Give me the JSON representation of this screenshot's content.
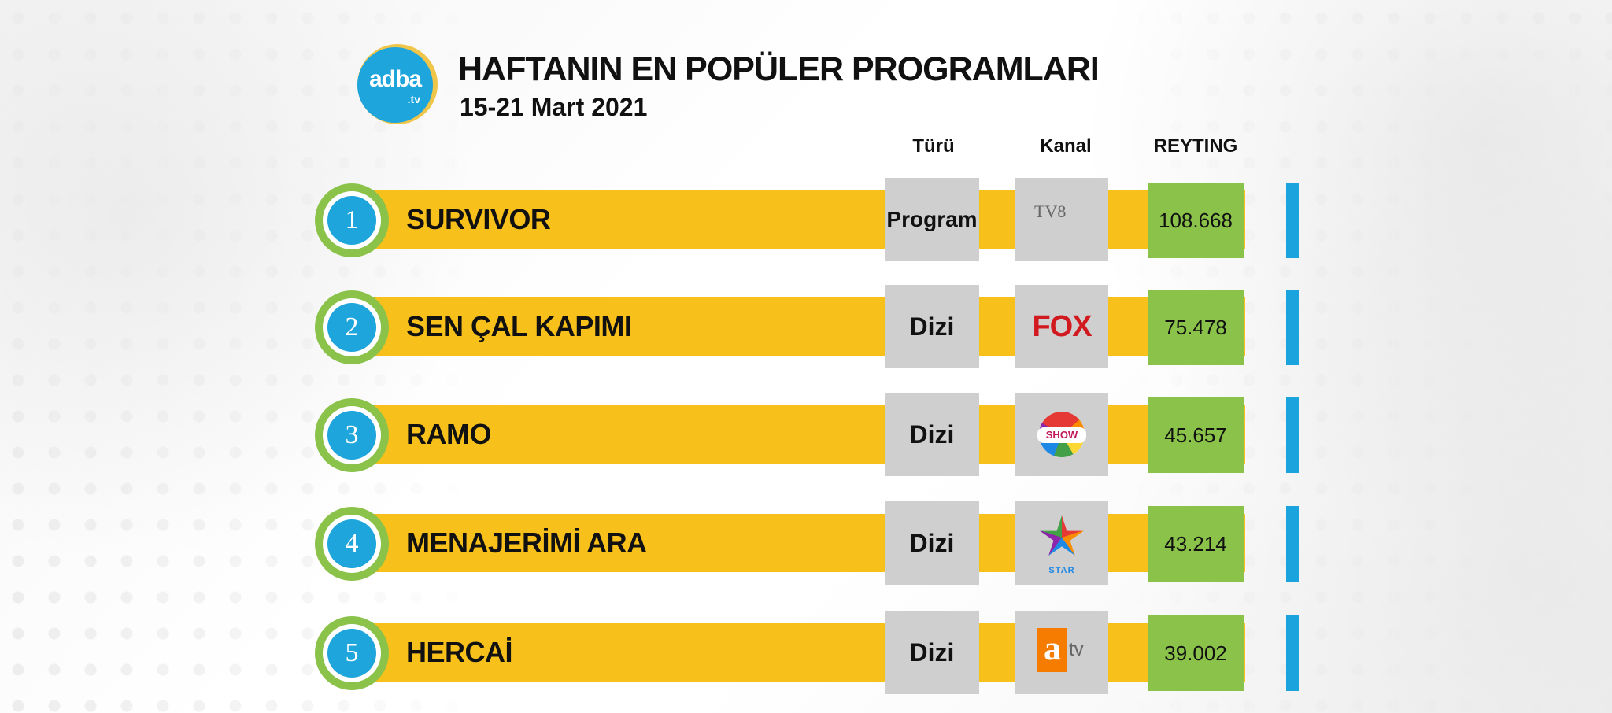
{
  "brand": {
    "logo_text": "adba",
    "logo_sub": ".tv"
  },
  "header": {
    "title": "HAFTANIN EN POPÜLER PROGRAMLARI",
    "subtitle": "15-21 Mart 2021"
  },
  "columns": {
    "type": "Türü",
    "channel": "Kanal",
    "rating": "REYTING"
  },
  "rows": [
    {
      "rank": "1",
      "name": "SURVIVOR",
      "type": "Program",
      "channel": "TV8",
      "channel_icon": "tv8-logo-icon",
      "rating": "108.668"
    },
    {
      "rank": "2",
      "name": "SEN ÇAL KAPIMI",
      "type": "Dizi",
      "channel": "FOX",
      "channel_icon": "fox-logo-icon",
      "rating": "75.478"
    },
    {
      "rank": "3",
      "name": "RAMO",
      "type": "Dizi",
      "channel": "SHOW",
      "channel_icon": "show-logo-icon",
      "rating": "45.657"
    },
    {
      "rank": "4",
      "name": "MENAJERİMİ ARA",
      "type": "Dizi",
      "channel": "STAR",
      "channel_icon": "star-logo-icon",
      "rating": "43.214"
    },
    {
      "rank": "5",
      "name": "HERCAİ",
      "type": "Dizi",
      "channel": "atv",
      "channel_icon": "atv-logo-icon",
      "rating": "39.002"
    }
  ],
  "colors": {
    "bar": "#f8c01b",
    "rank_circle": "#1da5dc",
    "ring": "#8bc34a",
    "rating_box": "#8bc34a",
    "accent": "#1aa3dc",
    "cell": "#cfcfcf"
  }
}
